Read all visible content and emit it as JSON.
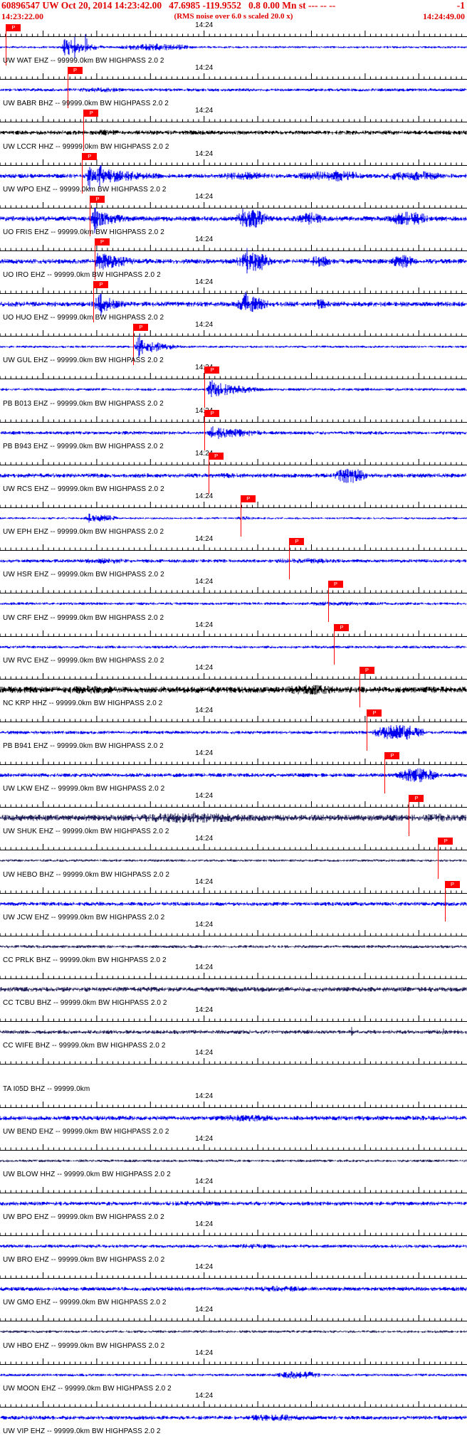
{
  "header": {
    "line1_left": "60896547 UW Oct 20, 2014 14:23:42.00   47.6985 -119.9552   0.8 0.00 Mn st --- -- --",
    "line1_right": "-1",
    "start_time": "14:23:22.00",
    "rms_note": "(RMS noise over 6.0 s scaled 20.0 x)",
    "end_time": "14:24:49.00",
    "text_color": "#e00000"
  },
  "axis": {
    "tick_label": "14:24",
    "minute_frac": 0.437,
    "window_seconds": 87,
    "pick_label": "P",
    "pick_color": "#ff0000"
  },
  "colors": {
    "blue": "#0000ee",
    "black": "#000000",
    "navy": "#23235c"
  },
  "traces": [
    {
      "label": "UW WAT EHZ -- 99999.0km BW HIGHPASS 2.0 2",
      "color": "blue",
      "base": 1.6,
      "bursts": [
        [
          0.13,
          0.25,
          14,
          1
        ],
        [
          0.24,
          0.43,
          5,
          0
        ]
      ],
      "spikes": [
        [
          0.162,
          16
        ],
        [
          0.185,
          27
        ]
      ],
      "pick": 0.012
    },
    {
      "label": "UW BABR BHZ -- 99999.0km BW HIGHPASS 2.0 2",
      "color": "blue",
      "base": 2.2,
      "bursts": [
        [
          0.14,
          0.3,
          3.5,
          0
        ]
      ],
      "pick": 0.144
    },
    {
      "label": "UW LCCR HHZ -- 99999.0km BW HIGHPASS 2.0 2",
      "color": "black",
      "base": 3.0,
      "bursts": [
        [
          0.18,
          0.27,
          4.5,
          0
        ]
      ],
      "pick": 0.179
    },
    {
      "label": "UW WPO EHZ -- 99999.0km BW HIGHPASS 2.0 2",
      "color": "blue",
      "base": 3.0,
      "bursts": [
        [
          0.175,
          0.45,
          13,
          1
        ],
        [
          0.45,
          0.6,
          6,
          0
        ],
        [
          0.62,
          0.8,
          8,
          0
        ],
        [
          0.8,
          0.97,
          7,
          0
        ]
      ],
      "spikes": [
        [
          0.19,
          20
        ],
        [
          0.215,
          17
        ]
      ],
      "pick": 0.175
    },
    {
      "label": "UO FRIS EHZ -- 99999.0km BW HIGHPASS 2.0 2",
      "color": "blue",
      "base": 3.5,
      "bursts": [
        [
          0.19,
          0.34,
          13,
          1
        ],
        [
          0.5,
          0.58,
          13,
          0
        ],
        [
          0.63,
          0.7,
          9,
          0
        ],
        [
          0.82,
          0.93,
          10,
          0
        ]
      ],
      "spikes": [
        [
          0.205,
          22
        ],
        [
          0.52,
          18
        ]
      ],
      "pick": 0.192
    },
    {
      "label": "UO IRO EHZ -- 99999.0km BW HIGHPASS 2.0 2",
      "color": "blue",
      "base": 3.5,
      "bursts": [
        [
          0.2,
          0.34,
          15,
          1
        ],
        [
          0.5,
          0.59,
          14,
          0
        ],
        [
          0.65,
          0.72,
          8,
          0
        ],
        [
          0.83,
          0.9,
          9,
          0
        ]
      ],
      "spikes": [
        [
          0.215,
          24
        ],
        [
          0.53,
          20
        ]
      ],
      "pick": 0.202
    },
    {
      "label": "UO HUO EHZ -- 99999.0km BW HIGHPASS 2.0 2",
      "color": "blue",
      "base": 3.5,
      "bursts": [
        [
          0.2,
          0.31,
          15,
          1
        ],
        [
          0.5,
          0.58,
          13,
          0
        ],
        [
          0.66,
          0.71,
          7,
          0
        ]
      ],
      "spikes": [
        [
          0.215,
          22
        ],
        [
          0.525,
          18
        ]
      ],
      "pick": 0.2
    },
    {
      "label": "UW GUL EHZ -- 99999.0km BW HIGHPASS 2.0 2",
      "color": "blue",
      "base": 1.7,
      "bursts": [
        [
          0.285,
          0.42,
          13,
          1
        ]
      ],
      "spikes": [
        [
          0.297,
          20
        ]
      ],
      "pick": 0.285
    },
    {
      "label": "PB B013 EHZ -- 99999.0km BW HIGHPASS 2.0 2",
      "color": "blue",
      "base": 2.0,
      "bursts": [
        [
          0.438,
          0.62,
          12,
          1
        ]
      ],
      "spikes": [
        [
          0.452,
          16
        ]
      ],
      "pick": 0.438
    },
    {
      "label": "PB B943 EHZ -- 99999.0km BW HIGHPASS 2.0 2",
      "color": "blue",
      "base": 2.4,
      "bursts": [
        [
          0.44,
          0.64,
          11,
          1
        ]
      ],
      "pick": 0.438
    },
    {
      "label": "UW RCS EHZ -- 99999.0km BW HIGHPASS 2.0 2",
      "color": "blue",
      "base": 3.0,
      "bursts": [
        [
          0.45,
          0.52,
          4,
          0
        ],
        [
          0.71,
          0.79,
          11,
          0
        ]
      ],
      "pick": 0.446
    },
    {
      "label": "UW EPH EHZ -- 99999.0km BW HIGHPASS 2.0 2",
      "color": "blue",
      "base": 1.5,
      "bursts": [
        [
          0.17,
          0.26,
          5,
          0
        ],
        [
          0.5,
          0.55,
          3,
          0
        ]
      ],
      "spikes": [
        [
          0.19,
          9
        ],
        [
          0.23,
          8
        ]
      ],
      "pick": 0.515
    },
    {
      "label": "UW HSR EHZ -- 99999.0km BW HIGHPASS 2.0 2",
      "color": "blue",
      "base": 2.4,
      "bursts": [
        [
          0.14,
          0.3,
          4,
          0
        ],
        [
          0.55,
          0.75,
          4,
          0
        ]
      ],
      "pick": 0.619
    },
    {
      "label": "UW CRF EHZ -- 99999.0km BW HIGHPASS 2.0 2",
      "color": "blue",
      "base": 2.0,
      "bursts": [
        [
          0.6,
          0.85,
          3,
          0
        ]
      ],
      "pick": 0.702
    },
    {
      "label": "UW RVC EHZ -- 99999.0km BW HIGHPASS 2.0 2",
      "color": "blue",
      "base": 2.0,
      "bursts": [],
      "pick": 0.715
    },
    {
      "label": "NC KRP HHZ -- 99999.0km BW HIGHPASS 2.0 2",
      "color": "black",
      "base": 4.5,
      "bursts": [
        [
          0.08,
          0.3,
          6,
          0
        ],
        [
          0.58,
          0.75,
          7,
          0
        ]
      ],
      "pick": 0.769
    },
    {
      "label": "PB B941 EHZ -- 99999.0km BW HIGHPASS 2.0 2",
      "color": "blue",
      "base": 2.4,
      "bursts": [
        [
          0.79,
          0.92,
          11,
          0
        ]
      ],
      "pick": 0.785
    },
    {
      "label": "UW LKW EHZ -- 99999.0km BW HIGHPASS 2.0 2",
      "color": "blue",
      "base": 2.8,
      "bursts": [
        [
          0.84,
          0.95,
          10,
          0
        ]
      ],
      "pick": 0.823
    },
    {
      "label": "UW SHUK EHZ -- 99999.0km BW HIGHPASS 2.0 2",
      "color": "navy",
      "base": 4.5,
      "bursts": [
        [
          0.2,
          0.6,
          7,
          0
        ],
        [
          0.88,
          0.99,
          6,
          0
        ]
      ],
      "pick": 0.875
    },
    {
      "label": "UW HEBO BHZ -- 99999.0km BW HIGHPASS 2.0 2",
      "color": "navy",
      "base": 1.8,
      "bursts": [],
      "pick": 0.938
    },
    {
      "label": "UW JCW EHZ -- 99999.0km BW HIGHPASS 2.0 2",
      "color": "blue",
      "base": 2.8,
      "bursts": [],
      "pick": 0.952
    },
    {
      "label": "CC PRLK BHZ -- 99999.0km BW HIGHPASS 2.0 2",
      "color": "navy",
      "base": 2.2,
      "bursts": [],
      "pick": null
    },
    {
      "label": "CC TCBU BHZ -- 99999.0km BW HIGHPASS 2.0 2",
      "color": "navy",
      "base": 3.4,
      "bursts": [],
      "pick": null
    },
    {
      "label": "CC WIFE BHZ -- 99999.0km BW HIGHPASS 2.0 2",
      "color": "navy",
      "base": 2.8,
      "bursts": [],
      "spikes": [
        [
          0.755,
          7
        ],
        [
          0.95,
          6
        ]
      ],
      "pick": null
    },
    {
      "label": "TA I05D BHZ -- 99999.0km",
      "color": "black",
      "base": 0,
      "bursts": [],
      "pick": null,
      "wave": false
    },
    {
      "label": "UW BEND EHZ -- 99999.0km BW HIGHPASS 2.0 2",
      "color": "blue",
      "base": 3.2,
      "bursts": [
        [
          0.42,
          0.65,
          5,
          0
        ]
      ],
      "pick": null
    },
    {
      "label": "UW BLOW HHZ -- 99999.0km BW HIGHPASS 2.0 2",
      "color": "navy",
      "base": 1.9,
      "bursts": [],
      "pick": null
    },
    {
      "label": "UW BPO EHZ -- 99999.0km BW HIGHPASS 2.0 2",
      "color": "blue",
      "base": 2.8,
      "bursts": [
        [
          0.3,
          0.55,
          3.6,
          0
        ]
      ],
      "pick": null
    },
    {
      "label": "UW BRO EHZ -- 99999.0km BW HIGHPASS 2.0 2",
      "color": "blue",
      "base": 2.4,
      "bursts": [
        [
          0.48,
          0.62,
          3.5,
          0
        ]
      ],
      "pick": null
    },
    {
      "label": "UW GMO EHZ -- 99999.0km BW HIGHPASS 2.0 2",
      "color": "blue",
      "base": 2.8,
      "bursts": [
        [
          0.53,
          0.68,
          4.5,
          0
        ]
      ],
      "pick": null
    },
    {
      "label": "UW HBO EHZ -- 99999.0km BW HIGHPASS 2.0 2",
      "color": "navy",
      "base": 1.9,
      "bursts": [],
      "pick": null
    },
    {
      "label": "UW MOON EHZ -- 99999.0km BW HIGHPASS 2.0 2",
      "color": "blue",
      "base": 1.9,
      "bursts": [
        [
          0.58,
          0.7,
          5.5,
          0
        ]
      ],
      "pick": null
    },
    {
      "label": "UW VIP EHZ -- 99999.0km BW HIGHPASS 2.0 2",
      "color": "blue",
      "base": 2.8,
      "bursts": [
        [
          0.5,
          0.68,
          5,
          0
        ]
      ],
      "pick": null
    }
  ]
}
